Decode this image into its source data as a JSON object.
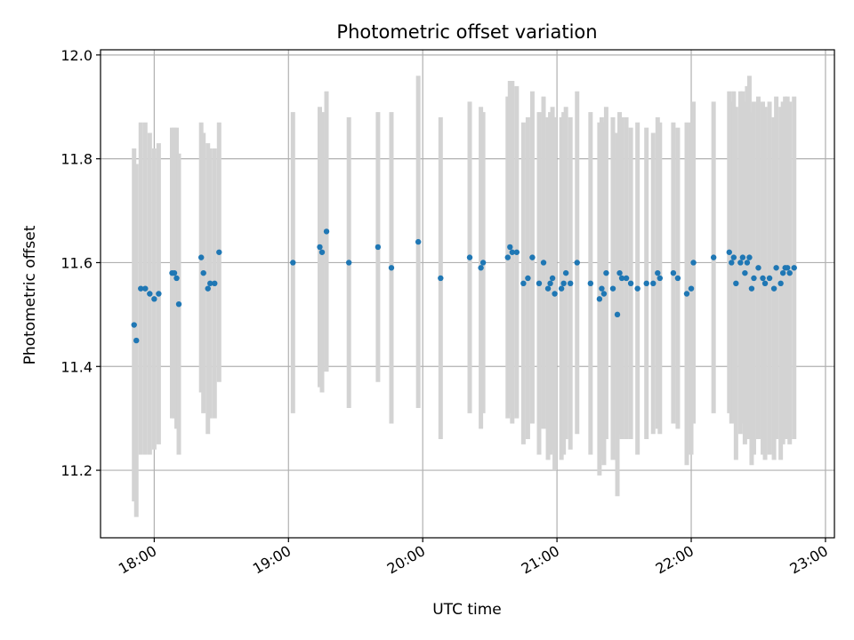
{
  "chart_data": {
    "type": "scatter",
    "title": "Photometric offset variation",
    "xlabel": "UTC time",
    "ylabel": "Photometric offset",
    "x_axis_kind": "time",
    "xlim": [
      "17:36",
      "23:04"
    ],
    "ylim": [
      11.07,
      12.01
    ],
    "x_ticks": [
      "18:00",
      "19:00",
      "20:00",
      "21:00",
      "22:00",
      "23:00"
    ],
    "y_ticks": [
      11.2,
      11.4,
      11.6,
      11.8,
      12.0
    ],
    "grid": true,
    "error_bar_color": "#d3d3d3",
    "point_color": "#1f77b4",
    "series": [
      {
        "x": [
          "17:51",
          "17:52",
          "17:54",
          "17:56",
          "17:58",
          "18:00",
          "18:02",
          "18:08",
          "18:09",
          "18:10",
          "18:11",
          "18:21",
          "18:22",
          "18:24",
          "18:25",
          "18:27",
          "18:29",
          "19:02",
          "19:14",
          "19:15",
          "19:17",
          "19:27",
          "19:40",
          "19:46",
          "19:58",
          "20:08",
          "20:21",
          "20:26",
          "20:27",
          "20:38",
          "20:39",
          "20:40",
          "20:42",
          "20:45",
          "20:47",
          "20:49",
          "20:52",
          "20:54",
          "20:56",
          "20:57",
          "20:58",
          "20:59",
          "21:02",
          "21:03",
          "21:04",
          "21:06",
          "21:09",
          "21:15",
          "21:19",
          "21:20",
          "21:21",
          "21:22",
          "21:25",
          "21:27",
          "21:28",
          "21:29",
          "21:31",
          "21:33",
          "21:36",
          "21:40",
          "21:43",
          "21:45",
          "21:46",
          "21:52",
          "21:54",
          "21:58",
          "22:00",
          "22:01",
          "22:10",
          "22:17",
          "22:18",
          "22:19",
          "22:20",
          "22:22",
          "22:23",
          "22:24",
          "22:25",
          "22:26",
          "22:27",
          "22:28",
          "22:30",
          "22:32",
          "22:33",
          "22:35",
          "22:37",
          "22:38",
          "22:40",
          "22:41",
          "22:42",
          "22:43",
          "22:44",
          "22:46"
        ],
        "y": [
          11.48,
          11.45,
          11.55,
          11.55,
          11.54,
          11.53,
          11.54,
          11.58,
          11.58,
          11.57,
          11.52,
          11.61,
          11.58,
          11.55,
          11.56,
          11.56,
          11.62,
          11.6,
          11.63,
          11.62,
          11.66,
          11.6,
          11.63,
          11.59,
          11.64,
          11.57,
          11.61,
          11.59,
          11.6,
          11.61,
          11.63,
          11.62,
          11.62,
          11.56,
          11.57,
          11.61,
          11.56,
          11.6,
          11.55,
          11.56,
          11.57,
          11.54,
          11.55,
          11.56,
          11.58,
          11.56,
          11.6,
          11.56,
          11.53,
          11.55,
          11.54,
          11.58,
          11.55,
          11.5,
          11.58,
          11.57,
          11.57,
          11.56,
          11.55,
          11.56,
          11.56,
          11.58,
          11.57,
          11.58,
          11.57,
          11.54,
          11.55,
          11.6,
          11.61,
          11.62,
          11.6,
          11.61,
          11.56,
          11.6,
          11.61,
          11.58,
          11.6,
          11.61,
          11.55,
          11.57,
          11.59,
          11.57,
          11.56,
          11.57,
          11.55,
          11.59,
          11.56,
          11.58,
          11.59,
          11.59,
          11.58,
          11.59
        ],
        "yerr": [
          0.34,
          0.34,
          0.32,
          0.32,
          0.31,
          0.29,
          0.29,
          0.28,
          0.28,
          0.29,
          0.29,
          0.26,
          0.27,
          0.28,
          0.26,
          0.26,
          0.25,
          0.29,
          0.27,
          0.27,
          0.27,
          0.28,
          0.26,
          0.3,
          0.32,
          0.31,
          0.3,
          0.31,
          0.29,
          0.31,
          0.32,
          0.33,
          0.32,
          0.31,
          0.31,
          0.32,
          0.33,
          0.32,
          0.33,
          0.33,
          0.33,
          0.34,
          0.33,
          0.33,
          0.32,
          0.32,
          0.33,
          0.33,
          0.34,
          0.33,
          0.33,
          0.32,
          0.33,
          0.35,
          0.31,
          0.31,
          0.31,
          0.3,
          0.32,
          0.3,
          0.29,
          0.3,
          0.3,
          0.29,
          0.29,
          0.33,
          0.32,
          0.31,
          0.3,
          0.31,
          0.31,
          0.32,
          0.34,
          0.33,
          0.32,
          0.33,
          0.34,
          0.35,
          0.34,
          0.34,
          0.33,
          0.34,
          0.34,
          0.34,
          0.33,
          0.33,
          0.34,
          0.33,
          0.33,
          0.33,
          0.33,
          0.33
        ]
      }
    ]
  }
}
